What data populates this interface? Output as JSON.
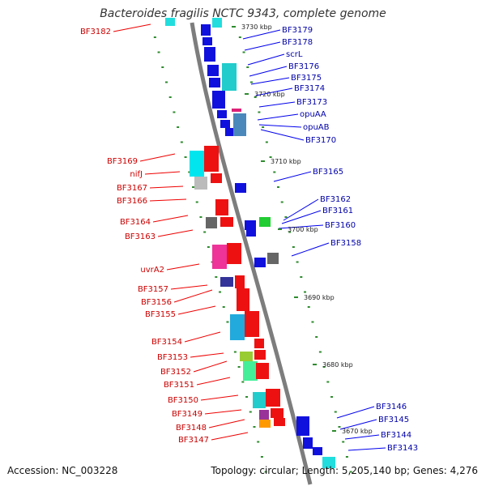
{
  "title": "Bacteroides fragilis NCTC 9343, complete genome",
  "footer": {
    "accession": "Accession: NC_003228",
    "summary": "Topology: circular; Length: 5,205,140 bp; Genes: 4,276"
  },
  "colors": {
    "backbone": "#7d7d7d",
    "tick": "#2e8b2e",
    "forward_gene": "#ee1111",
    "reverse_gene": "#1111dd",
    "left_label": "#cc0000",
    "right_label": "#0000aa",
    "leader": "#0000ee",
    "leader_left": "#ee0000"
  },
  "kbp_ticks": [
    "3730 kbp",
    "3720 kbp",
    "3710 kbp",
    "3700 kbp",
    "3690 kbp",
    "3680 kbp",
    "3670 kbp"
  ],
  "left_genes": [
    "BF3182",
    "BF3169",
    "nifJ",
    "BF3167",
    "BF3166",
    "BF3164",
    "BF3163",
    "uvrA2",
    "BF3157",
    "BF3156",
    "BF3155",
    "BF3154",
    "BF3153",
    "BF3152",
    "BF3151",
    "BF3150",
    "BF3149",
    "BF3148",
    "BF3147"
  ],
  "right_genes": [
    "BF3179",
    "BF3178",
    "scrL",
    "BF3176",
    "BF3175",
    "BF3174",
    "BF3173",
    "opuAA",
    "opuAB",
    "BF3170",
    "BF3165",
    "BF3162",
    "BF3161",
    "BF3160",
    "BF3158",
    "BF3146",
    "BF3145",
    "BF3144",
    "BF3143"
  ]
}
